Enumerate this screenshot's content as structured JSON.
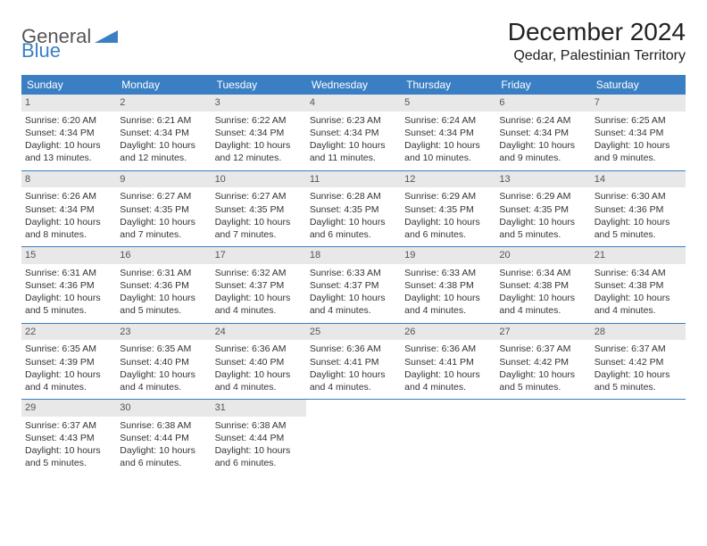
{
  "logo": {
    "text1": "General",
    "text2": "Blue"
  },
  "title": "December 2024",
  "location": "Qedar, Palestinian Territory",
  "style": {
    "header_bg": "#3a7fc4",
    "header_fg": "#ffffff",
    "daynum_bg": "#e8e8e8",
    "daynum_fg": "#555555",
    "cell_fontsize": 10.5,
    "title_fontsize": 28,
    "location_fontsize": 16,
    "logo_fontsize": 22,
    "dayhead_fontsize": 12
  },
  "day_headers": [
    "Sunday",
    "Monday",
    "Tuesday",
    "Wednesday",
    "Thursday",
    "Friday",
    "Saturday"
  ],
  "days": [
    {
      "n": "1",
      "sunrise": "6:20 AM",
      "sunset": "4:34 PM",
      "daylight": "10 hours and 13 minutes."
    },
    {
      "n": "2",
      "sunrise": "6:21 AM",
      "sunset": "4:34 PM",
      "daylight": "10 hours and 12 minutes."
    },
    {
      "n": "3",
      "sunrise": "6:22 AM",
      "sunset": "4:34 PM",
      "daylight": "10 hours and 12 minutes."
    },
    {
      "n": "4",
      "sunrise": "6:23 AM",
      "sunset": "4:34 PM",
      "daylight": "10 hours and 11 minutes."
    },
    {
      "n": "5",
      "sunrise": "6:24 AM",
      "sunset": "4:34 PM",
      "daylight": "10 hours and 10 minutes."
    },
    {
      "n": "6",
      "sunrise": "6:24 AM",
      "sunset": "4:34 PM",
      "daylight": "10 hours and 9 minutes."
    },
    {
      "n": "7",
      "sunrise": "6:25 AM",
      "sunset": "4:34 PM",
      "daylight": "10 hours and 9 minutes."
    },
    {
      "n": "8",
      "sunrise": "6:26 AM",
      "sunset": "4:34 PM",
      "daylight": "10 hours and 8 minutes."
    },
    {
      "n": "9",
      "sunrise": "6:27 AM",
      "sunset": "4:35 PM",
      "daylight": "10 hours and 7 minutes."
    },
    {
      "n": "10",
      "sunrise": "6:27 AM",
      "sunset": "4:35 PM",
      "daylight": "10 hours and 7 minutes."
    },
    {
      "n": "11",
      "sunrise": "6:28 AM",
      "sunset": "4:35 PM",
      "daylight": "10 hours and 6 minutes."
    },
    {
      "n": "12",
      "sunrise": "6:29 AM",
      "sunset": "4:35 PM",
      "daylight": "10 hours and 6 minutes."
    },
    {
      "n": "13",
      "sunrise": "6:29 AM",
      "sunset": "4:35 PM",
      "daylight": "10 hours and 5 minutes."
    },
    {
      "n": "14",
      "sunrise": "6:30 AM",
      "sunset": "4:36 PM",
      "daylight": "10 hours and 5 minutes."
    },
    {
      "n": "15",
      "sunrise": "6:31 AM",
      "sunset": "4:36 PM",
      "daylight": "10 hours and 5 minutes."
    },
    {
      "n": "16",
      "sunrise": "6:31 AM",
      "sunset": "4:36 PM",
      "daylight": "10 hours and 5 minutes."
    },
    {
      "n": "17",
      "sunrise": "6:32 AM",
      "sunset": "4:37 PM",
      "daylight": "10 hours and 4 minutes."
    },
    {
      "n": "18",
      "sunrise": "6:33 AM",
      "sunset": "4:37 PM",
      "daylight": "10 hours and 4 minutes."
    },
    {
      "n": "19",
      "sunrise": "6:33 AM",
      "sunset": "4:38 PM",
      "daylight": "10 hours and 4 minutes."
    },
    {
      "n": "20",
      "sunrise": "6:34 AM",
      "sunset": "4:38 PM",
      "daylight": "10 hours and 4 minutes."
    },
    {
      "n": "21",
      "sunrise": "6:34 AM",
      "sunset": "4:38 PM",
      "daylight": "10 hours and 4 minutes."
    },
    {
      "n": "22",
      "sunrise": "6:35 AM",
      "sunset": "4:39 PM",
      "daylight": "10 hours and 4 minutes."
    },
    {
      "n": "23",
      "sunrise": "6:35 AM",
      "sunset": "4:40 PM",
      "daylight": "10 hours and 4 minutes."
    },
    {
      "n": "24",
      "sunrise": "6:36 AM",
      "sunset": "4:40 PM",
      "daylight": "10 hours and 4 minutes."
    },
    {
      "n": "25",
      "sunrise": "6:36 AM",
      "sunset": "4:41 PM",
      "daylight": "10 hours and 4 minutes."
    },
    {
      "n": "26",
      "sunrise": "6:36 AM",
      "sunset": "4:41 PM",
      "daylight": "10 hours and 4 minutes."
    },
    {
      "n": "27",
      "sunrise": "6:37 AM",
      "sunset": "4:42 PM",
      "daylight": "10 hours and 5 minutes."
    },
    {
      "n": "28",
      "sunrise": "6:37 AM",
      "sunset": "4:42 PM",
      "daylight": "10 hours and 5 minutes."
    },
    {
      "n": "29",
      "sunrise": "6:37 AM",
      "sunset": "4:43 PM",
      "daylight": "10 hours and 5 minutes."
    },
    {
      "n": "30",
      "sunrise": "6:38 AM",
      "sunset": "4:44 PM",
      "daylight": "10 hours and 6 minutes."
    },
    {
      "n": "31",
      "sunrise": "6:38 AM",
      "sunset": "4:44 PM",
      "daylight": "10 hours and 6 minutes."
    }
  ],
  "labels": {
    "sunrise": "Sunrise:",
    "sunset": "Sunset:",
    "daylight": "Daylight:"
  }
}
